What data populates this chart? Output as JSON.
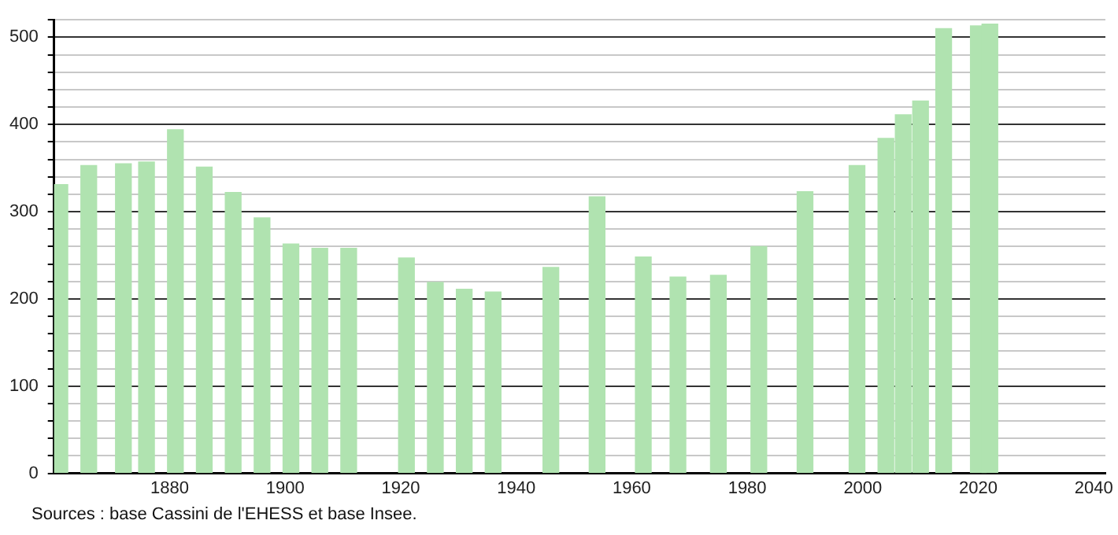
{
  "chart_data": {
    "type": "bar",
    "x": [
      1861,
      1866,
      1872,
      1876,
      1881,
      1886,
      1891,
      1896,
      1901,
      1906,
      1911,
      1921,
      1926,
      1931,
      1936,
      1946,
      1954,
      1962,
      1968,
      1975,
      1982,
      1990,
      1999,
      2004,
      2007,
      2010,
      2014,
      2020,
      2022
    ],
    "values": [
      331,
      353,
      355,
      357,
      394,
      351,
      322,
      293,
      263,
      258,
      258,
      247,
      219,
      211,
      208,
      236,
      317,
      248,
      225,
      227,
      260,
      323,
      353,
      384,
      411,
      427,
      510,
      513,
      515
    ],
    "color": "#b0e3b0",
    "xlim": [
      1860,
      2042
    ],
    "xticks": [
      1880,
      1900,
      1920,
      1940,
      1960,
      1980,
      2000,
      2020,
      2040
    ],
    "ylim": [
      0,
      520
    ],
    "yticks": [
      0,
      {
        "value": 20,
        "label": null
      },
      {
        "value": 40,
        "label": null
      },
      {
        "value": 60,
        "label": null
      },
      {
        "value": 80,
        "label": null
      },
      100,
      {
        "value": 120,
        "label": null
      },
      {
        "value": 140,
        "label": null
      },
      {
        "value": 160,
        "label": null
      },
      {
        "value": 180,
        "label": null
      },
      200,
      {
        "value": 220,
        "label": null
      },
      {
        "value": 240,
        "label": null
      },
      {
        "value": 260,
        "label": null
      },
      {
        "value": 280,
        "label": null
      },
      300,
      {
        "value": 320,
        "label": null
      },
      {
        "value": 340,
        "label": null
      },
      {
        "value": 360,
        "label": null
      },
      {
        "value": 380,
        "label": null
      },
      400,
      {
        "value": 420,
        "label": null
      },
      {
        "value": 440,
        "label": null
      },
      {
        "value": 460,
        "label": null
      },
      {
        "value": 480,
        "label": null
      },
      500,
      {
        "value": 520,
        "label": null
      }
    ],
    "grid": "y",
    "legend": false,
    "annotations": [
      "Sources : base Cassini de l'EHESS et base Insee."
    ]
  }
}
